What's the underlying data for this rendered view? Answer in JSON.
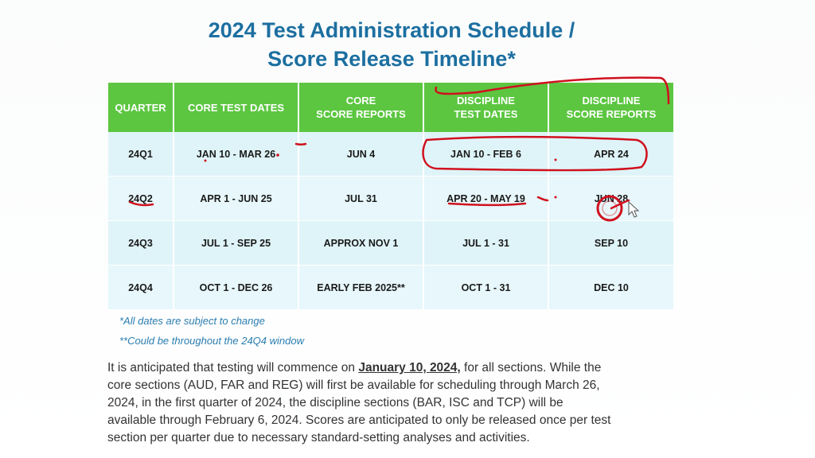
{
  "title": {
    "line1": "2024 Test Administration Schedule /",
    "line2": "Score Release Timeline*"
  },
  "table": {
    "headers": [
      [
        "QUARTER"
      ],
      [
        "CORE TEST DATES"
      ],
      [
        "CORE",
        "SCORE REPORTS"
      ],
      [
        "DISCIPLINE",
        "TEST DATES"
      ],
      [
        "DISCIPLINE",
        "SCORE REPORTS"
      ]
    ],
    "rows": [
      [
        "24Q1",
        "JAN 10 - MAR 26",
        "JUN 4",
        "JAN 10 - FEB 6",
        "APR 24"
      ],
      [
        "24Q2",
        "APR 1 - JUN 25",
        "JUL 31",
        "APR 20 - MAY 19",
        "JUN 28"
      ],
      [
        "24Q3",
        "JUL 1 - SEP 25",
        "APPROX NOV 1",
        "JUL 1 - 31",
        "SEP 10"
      ],
      [
        "24Q4",
        "OCT 1 - DEC 26",
        "EARLY FEB 2025**",
        "OCT 1 - 31",
        "DEC 10"
      ]
    ]
  },
  "notes": {
    "note1": "*All dates are subject to change",
    "note2": "**Could be throughout the 24Q4 window"
  },
  "paragraph": {
    "line1_pre": "It is anticipated that testing will commence on ",
    "line1_date": "January 10, 2024,",
    "line1_post": " for all sections. While the",
    "line2": "core sections (AUD, FAR and REG) will first be available for scheduling through March 26,",
    "line3": "2024, in the first quarter of 2024, the discipline sections (BAR, ISC and TCP) will be",
    "line4": "available through February 6, 2024. Scores are anticipated to only be released once per test",
    "line5": "section per quarter due to necessary standard-setting analyses and activities."
  },
  "colors": {
    "title": "#1c6fa0",
    "header_bg": "#5cc641",
    "row_bg": "#e7f7fb",
    "note": "#2a7db0",
    "annotation": "#d0101e"
  }
}
